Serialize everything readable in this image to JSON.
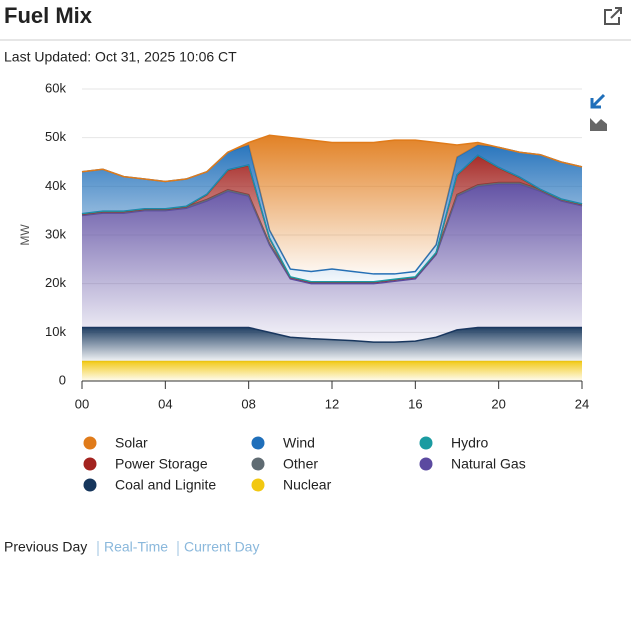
{
  "header": {
    "title": "Fuel Mix",
    "last_updated": "Last Updated: Oct 31, 2025 10:06 CT"
  },
  "footer": {
    "links": [
      "Previous Day",
      "Real-Time",
      "Current Day"
    ]
  },
  "chart_data": {
    "type": "stacked-area",
    "y_label": "MW",
    "x": [
      0,
      1,
      2,
      3,
      4,
      5,
      6,
      7,
      8,
      9,
      10,
      11,
      12,
      13,
      14,
      15,
      16,
      17,
      18,
      19,
      20,
      21,
      22,
      23,
      24
    ],
    "xlim": [
      0,
      24
    ],
    "xticks": [
      {
        "value": 0,
        "label": "00"
      },
      {
        "value": 4,
        "label": "04"
      },
      {
        "value": 8,
        "label": "08"
      },
      {
        "value": 12,
        "label": "12"
      },
      {
        "value": 16,
        "label": "16"
      },
      {
        "value": 20,
        "label": "20"
      },
      {
        "value": 24,
        "label": "24"
      }
    ],
    "ylim": [
      0,
      60000
    ],
    "yticks": [
      0,
      {
        "value": 10000,
        "label": "10k"
      },
      {
        "value": 20000,
        "label": "20k"
      },
      {
        "value": 30000,
        "label": "30k"
      },
      {
        "value": 40000,
        "label": "40k"
      },
      {
        "value": 50000,
        "label": "50k"
      },
      {
        "value": 60000,
        "label": "60k"
      }
    ],
    "grid": true,
    "series": [
      {
        "name": "Solar",
        "color": "#e07b1a",
        "values": [
          0,
          0,
          0,
          0,
          0,
          0,
          0,
          0,
          500,
          19500,
          27000,
          27000,
          26000,
          26500,
          27000,
          27500,
          27000,
          21000,
          2500,
          500,
          0,
          0,
          0,
          0,
          0
        ]
      },
      {
        "name": "Wind",
        "color": "#1f6fba",
        "values": [
          8600,
          8600,
          7100,
          6100,
          5600,
          5600,
          4600,
          3600,
          4100,
          1600,
          1600,
          2100,
          2600,
          2100,
          1600,
          1100,
          1100,
          1600,
          3600,
          2100,
          4100,
          5100,
          7100,
          7600,
          7600
        ]
      },
      {
        "name": "Hydro",
        "color": "#1a9ba1",
        "values": [
          100,
          100,
          100,
          100,
          100,
          100,
          100,
          100,
          100,
          100,
          100,
          100,
          100,
          100,
          100,
          100,
          100,
          100,
          100,
          100,
          100,
          100,
          100,
          100,
          100
        ]
      },
      {
        "name": "Power Storage",
        "color": "#a3231f",
        "values": [
          0,
          0,
          0,
          0,
          0,
          0,
          1000,
          4000,
          6000,
          1000,
          0,
          0,
          0,
          0,
          0,
          0,
          0,
          0,
          4000,
          6000,
          3000,
          1000,
          0,
          0,
          0
        ]
      },
      {
        "name": "Other",
        "color": "#5f6b72",
        "values": [
          300,
          300,
          300,
          300,
          300,
          300,
          300,
          300,
          300,
          300,
          300,
          300,
          300,
          300,
          300,
          300,
          300,
          300,
          300,
          300,
          300,
          300,
          300,
          300,
          300
        ]
      },
      {
        "name": "Natural Gas",
        "color": "#5b4aa0",
        "values": [
          23000,
          23500,
          23500,
          24000,
          24000,
          24500,
          26000,
          28000,
          27000,
          18000,
          12000,
          11300,
          11500,
          11700,
          12000,
          12500,
          12800,
          17000,
          27500,
          29000,
          29500,
          29500,
          28000,
          26000,
          25000
        ]
      },
      {
        "name": "Coal and Lignite",
        "color": "#16365c",
        "values": [
          7000,
          7000,
          7000,
          7000,
          7000,
          7000,
          7000,
          7000,
          7000,
          6000,
          5000,
          4700,
          4500,
          4300,
          4000,
          4000,
          4200,
          5000,
          6500,
          7000,
          7000,
          7000,
          7000,
          7000,
          7000
        ]
      },
      {
        "name": "Nuclear",
        "color": "#f2c811",
        "values": [
          4000,
          4000,
          4000,
          4000,
          4000,
          4000,
          4000,
          4000,
          4000,
          4000,
          4000,
          4000,
          4000,
          4000,
          4000,
          4000,
          4000,
          4000,
          4000,
          4000,
          4000,
          4000,
          4000,
          4000,
          4000
        ]
      }
    ]
  }
}
